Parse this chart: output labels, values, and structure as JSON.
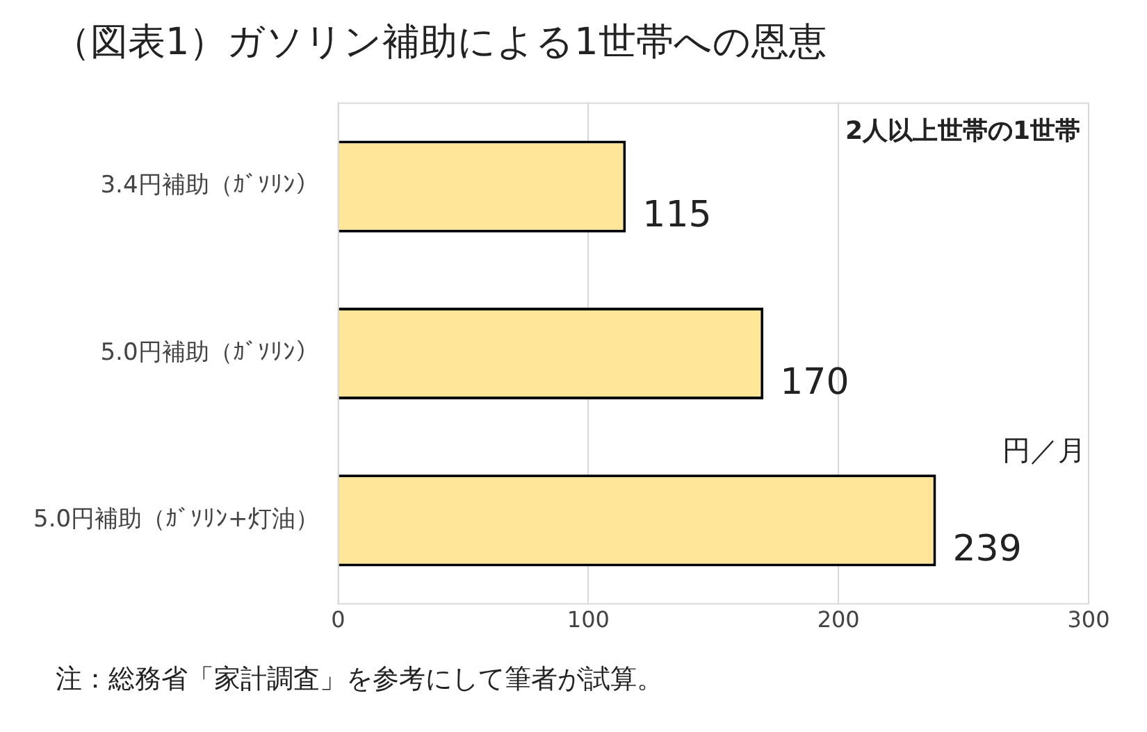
{
  "chart_data": {
    "type": "bar",
    "orientation": "horizontal",
    "title": "（図表1）ガソリン補助による1世帯への恩恵",
    "categories": [
      "3.4円補助（ｶﾞｿﾘﾝ）",
      "5.0円補助（ｶﾞｿﾘﾝ）",
      "5.0円補助（ｶﾞｿﾘﾝ+灯油）"
    ],
    "values": [
      115,
      170,
      239
    ],
    "color": "#ffe699",
    "xlim": [
      0,
      300
    ],
    "xticks": [
      0,
      100,
      200,
      300
    ],
    "grid": "x",
    "data_labels": true,
    "annotations": [
      "2人以上世帯の1世帯",
      "円／月",
      "注：総務省「家計調査」を参考にして筆者が試算。"
    ]
  }
}
